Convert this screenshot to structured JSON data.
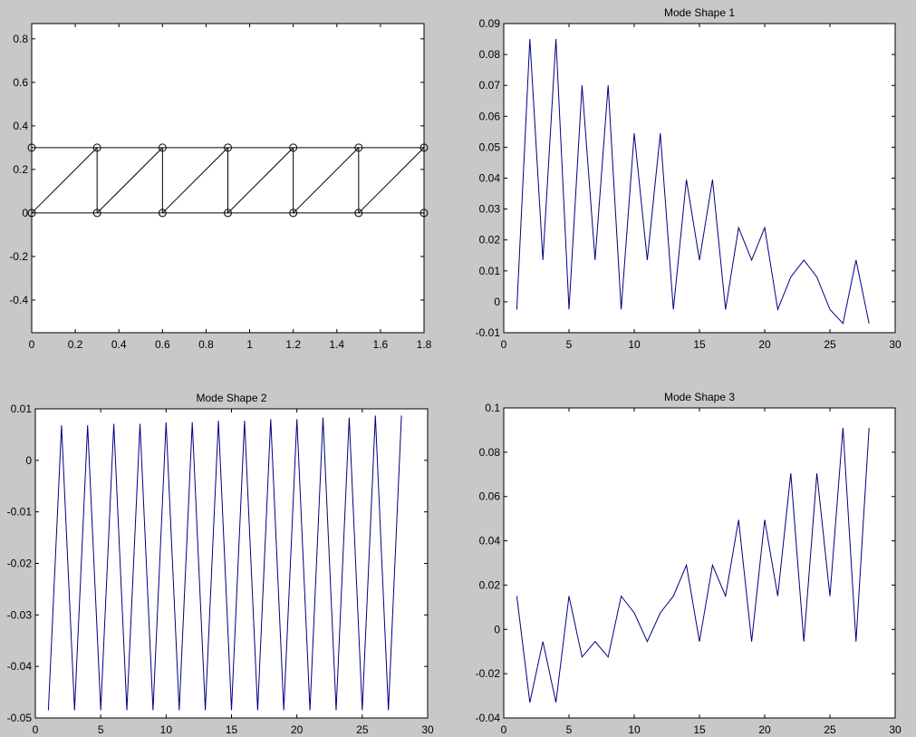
{
  "chart_data": [
    {
      "type": "line",
      "title": "",
      "xlabel": "",
      "ylabel": "",
      "xlim": [
        0,
        1.8
      ],
      "ylim": [
        -0.55,
        0.87
      ],
      "xticks": [
        0,
        0.2,
        0.4,
        0.6,
        0.8,
        1,
        1.2,
        1.4,
        1.6,
        1.8
      ],
      "xtick_labels": [
        "0",
        "0.2",
        "0.4",
        "0.6",
        "0.8",
        "1",
        "1.2",
        "1.4",
        "1.6",
        "1.8"
      ],
      "yticks": [
        -0.4,
        -0.2,
        0,
        0.2,
        0.4,
        0.6,
        0.8
      ],
      "ytick_labels": [
        "-0.4",
        "-0.2",
        "0",
        "0.2",
        "0.4",
        "0.6",
        "0.8"
      ],
      "nodes": [
        [
          0,
          0
        ],
        [
          0,
          0.3
        ],
        [
          0.3,
          0
        ],
        [
          0.3,
          0.3
        ],
        [
          0.6,
          0
        ],
        [
          0.6,
          0.3
        ],
        [
          0.9,
          0
        ],
        [
          0.9,
          0.3
        ],
        [
          1.2,
          0
        ],
        [
          1.2,
          0.3
        ],
        [
          1.5,
          0
        ],
        [
          1.5,
          0.3
        ],
        [
          1.8,
          0
        ],
        [
          1.8,
          0.3
        ]
      ],
      "members": [
        [
          0,
          2
        ],
        [
          2,
          4
        ],
        [
          4,
          6
        ],
        [
          6,
          8
        ],
        [
          8,
          10
        ],
        [
          10,
          12
        ],
        [
          1,
          3
        ],
        [
          3,
          5
        ],
        [
          5,
          7
        ],
        [
          7,
          9
        ],
        [
          9,
          11
        ],
        [
          11,
          13
        ],
        [
          2,
          3
        ],
        [
          4,
          5
        ],
        [
          6,
          7
        ],
        [
          8,
          9
        ],
        [
          10,
          11
        ],
        [
          12,
          13
        ],
        [
          0,
          3
        ],
        [
          2,
          5
        ],
        [
          4,
          7
        ],
        [
          6,
          9
        ],
        [
          8,
          11
        ],
        [
          10,
          13
        ]
      ],
      "marker": "circle",
      "color": "#000000",
      "grid": false
    },
    {
      "type": "line",
      "title": "Mode Shape 1",
      "xlabel": "",
      "ylabel": "",
      "xlim": [
        0,
        30
      ],
      "ylim": [
        -0.01,
        0.09
      ],
      "xticks": [
        0,
        5,
        10,
        15,
        20,
        25,
        30
      ],
      "xtick_labels": [
        "0",
        "5",
        "10",
        "15",
        "20",
        "25",
        "30"
      ],
      "yticks": [
        -0.01,
        0,
        0.01,
        0.02,
        0.03,
        0.04,
        0.05,
        0.06,
        0.07,
        0.08,
        0.09
      ],
      "ytick_labels": [
        "-0.01",
        "0",
        "0.01",
        "0.02",
        "0.03",
        "0.04",
        "0.05",
        "0.06",
        "0.07",
        "0.08",
        "0.09"
      ],
      "series": [
        {
          "x": [
            1,
            2,
            3,
            4,
            5,
            6,
            7,
            8,
            9,
            10,
            11,
            12,
            13,
            14,
            15,
            16,
            17,
            18,
            19,
            20,
            21,
            22,
            23,
            24,
            25,
            26,
            27,
            28
          ],
          "values": [
            -0.0025,
            0.085,
            0.0135,
            0.085,
            -0.0025,
            0.07,
            0.0135,
            0.07,
            -0.0025,
            0.0545,
            0.0135,
            0.0545,
            -0.0025,
            0.0395,
            0.0135,
            0.0395,
            -0.0025,
            0.024,
            0.0135,
            0.024,
            -0.0025,
            0.008,
            0.0135,
            0.008,
            -0.0025,
            -0.007,
            0.0135,
            -0.007
          ]
        }
      ],
      "color": "#000080",
      "grid": false
    },
    {
      "type": "line",
      "title": "Mode Shape 2",
      "xlabel": "",
      "ylabel": "",
      "xlim": [
        0,
        30
      ],
      "ylim": [
        -0.05,
        0.01
      ],
      "xticks": [
        0,
        5,
        10,
        15,
        20,
        25,
        30
      ],
      "xtick_labels": [
        "0",
        "5",
        "10",
        "15",
        "20",
        "25",
        "30"
      ],
      "yticks": [
        -0.05,
        -0.04,
        -0.03,
        -0.02,
        -0.01,
        0,
        0.01
      ],
      "ytick_labels": [
        "-0.05",
        "-0.04",
        "-0.03",
        "-0.02",
        "-0.01",
        "0",
        "0.01"
      ],
      "series": [
        {
          "x": [
            1,
            2,
            3,
            4,
            5,
            6,
            7,
            8,
            9,
            10,
            11,
            12,
            13,
            14,
            15,
            16,
            17,
            18,
            19,
            20,
            21,
            22,
            23,
            24,
            25,
            26,
            27,
            28
          ],
          "values": [
            -0.0485,
            0.0068,
            -0.0485,
            0.0068,
            -0.0485,
            0.0071,
            -0.0485,
            0.0071,
            -0.0485,
            0.0074,
            -0.0485,
            0.0074,
            -0.0485,
            0.0077,
            -0.0485,
            0.0077,
            -0.0485,
            0.008,
            -0.0485,
            0.008,
            -0.0485,
            0.0083,
            -0.0485,
            0.0083,
            -0.0485,
            0.0087,
            -0.0485,
            0.0087
          ]
        }
      ],
      "color": "#000080",
      "grid": false
    },
    {
      "type": "line",
      "title": "Mode Shape 3",
      "xlabel": "",
      "ylabel": "",
      "xlim": [
        0,
        30
      ],
      "ylim": [
        -0.04,
        0.1
      ],
      "xticks": [
        0,
        5,
        10,
        15,
        20,
        25,
        30
      ],
      "xtick_labels": [
        "0",
        "5",
        "10",
        "15",
        "20",
        "25",
        "30"
      ],
      "yticks": [
        -0.04,
        -0.02,
        0,
        0.02,
        0.04,
        0.06,
        0.08,
        0.1
      ],
      "ytick_labels": [
        "-0.04",
        "-0.02",
        "0",
        "0.02",
        "0.04",
        "0.06",
        "0.08",
        "0.1"
      ],
      "series": [
        {
          "x": [
            1,
            2,
            3,
            4,
            5,
            6,
            7,
            8,
            9,
            10,
            11,
            12,
            13,
            14,
            15,
            16,
            17,
            18,
            19,
            20,
            21,
            22,
            23,
            24,
            25,
            26,
            27,
            28
          ],
          "values": [
            0.015,
            -0.033,
            -0.0055,
            -0.033,
            0.015,
            -0.0125,
            -0.0055,
            -0.0125,
            0.015,
            0.0075,
            -0.0055,
            0.0075,
            0.015,
            0.029,
            -0.0055,
            0.029,
            0.015,
            0.0495,
            -0.0055,
            0.0495,
            0.015,
            0.0705,
            -0.0055,
            0.0705,
            0.015,
            0.091,
            -0.0055,
            0.091
          ]
        }
      ],
      "color": "#000080",
      "grid": false
    }
  ]
}
